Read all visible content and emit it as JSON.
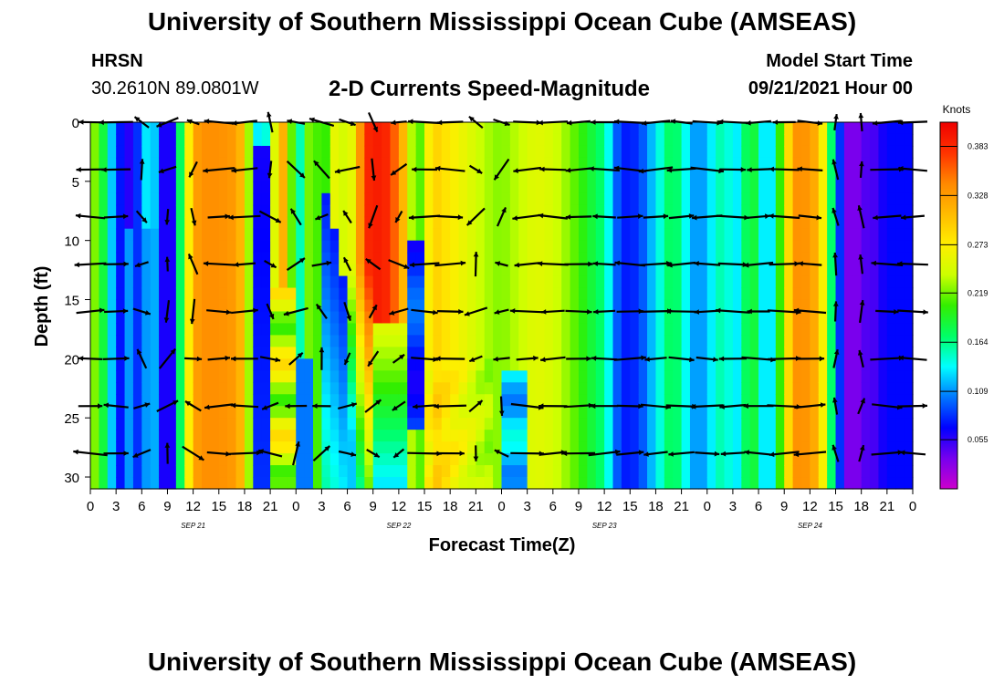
{
  "header": {
    "title_top": "University of Southern Mississippi Ocean Cube (AMSEAS)",
    "station": "HRSN",
    "coords": "30.2610N  89.0801W",
    "chart_title": "2-D Currents Speed-Magnitude",
    "model_start_label": "Model Start Time",
    "model_start_value": "09/21/2021 Hour 00",
    "title_bottom": "University of Southern Mississippi Ocean Cube (AMSEAS)"
  },
  "chart_data": {
    "type": "heatmap",
    "title": "2-D Currents Speed-Magnitude",
    "xlabel": "Forecast Time(Z)",
    "ylabel": "Depth (ft)",
    "x_ticks": [
      "0",
      "3",
      "6",
      "9",
      "12",
      "15",
      "18",
      "21",
      "0",
      "3",
      "6",
      "9",
      "12",
      "15",
      "18",
      "21",
      "0",
      "3",
      "6",
      "9",
      "12",
      "15",
      "18",
      "21",
      "0",
      "3",
      "6",
      "9",
      "12",
      "15",
      "18",
      "21",
      "0"
    ],
    "x_range_hours": [
      0,
      96
    ],
    "date_labels": [
      {
        "label": "SEP 21",
        "hour": 12
      },
      {
        "label": "SEP 22",
        "hour": 36
      },
      {
        "label": "SEP 23",
        "hour": 60
      },
      {
        "label": "SEP 24",
        "hour": 84
      }
    ],
    "y_ticks": [
      "0",
      "5",
      "10",
      "15",
      "20",
      "25",
      "30"
    ],
    "y_range": [
      0,
      31
    ],
    "y_inverted": true,
    "colorbar": {
      "units": "Knots",
      "tick_labels": [
        "0.383",
        "0.328",
        "0.273",
        "0.219",
        "0.164",
        "0.109",
        "0.055"
      ],
      "tick_values": [
        0.383,
        0.328,
        0.273,
        0.219,
        0.164,
        0.109,
        0.055
      ],
      "range": [
        0.0,
        0.41
      ],
      "colors": [
        "#cc00cc",
        "#7700ee",
        "#0000ff",
        "#0077ff",
        "#00ffff",
        "#00ff66",
        "#33ee00",
        "#ccff00",
        "#ffee00",
        "#ffbb00",
        "#ff8800",
        "#ff3300",
        "#ee0000"
      ]
    },
    "vector_depths_ft": [
      0,
      4,
      8,
      12,
      16,
      20,
      24,
      28
    ]
  }
}
